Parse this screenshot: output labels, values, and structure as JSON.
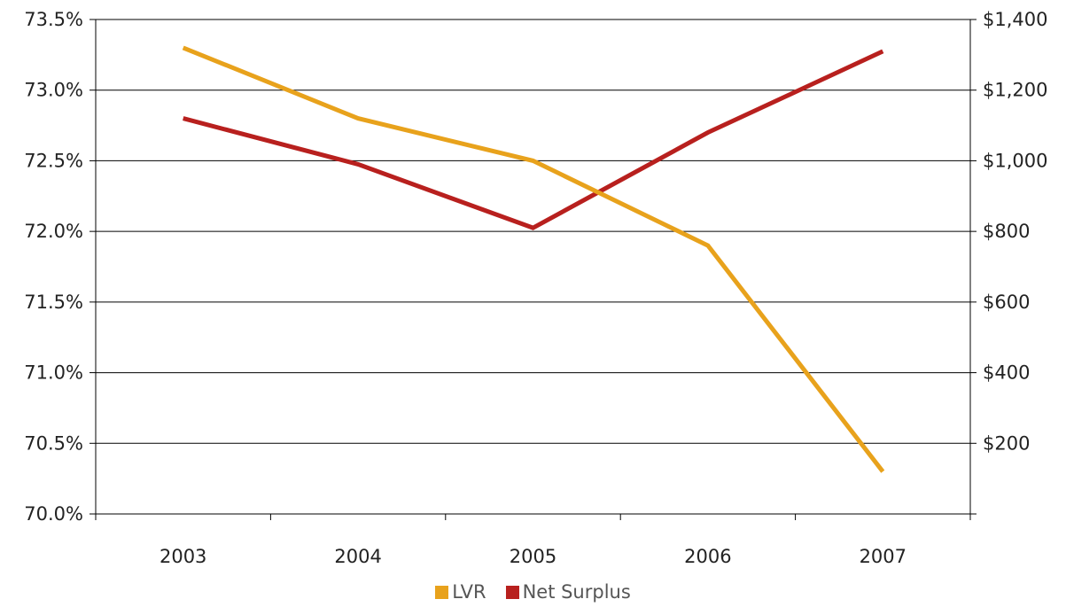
{
  "chart_data": {
    "type": "line",
    "categories": [
      "2003",
      "2004",
      "2005",
      "2006",
      "2007"
    ],
    "series": [
      {
        "name": "LVR",
        "axis": "left",
        "color": "#E8A21C",
        "values": [
          73.3,
          72.8,
          72.5,
          71.9,
          70.3
        ]
      },
      {
        "name": "Net Surplus",
        "axis": "right",
        "color": "#B8201E",
        "values": [
          1120,
          990,
          810,
          1080,
          1310
        ]
      }
    ],
    "y_left": {
      "range": [
        70.0,
        73.5
      ],
      "ticks": [
        "70.0%",
        "70.5%",
        "71.0%",
        "71.5%",
        "72.0%",
        "72.5%",
        "73.0%",
        "73.5%"
      ]
    },
    "y_right": {
      "range": [
        0,
        1400
      ],
      "ticks": [
        "$200",
        "$400",
        "$600",
        "$800",
        "$1,000",
        "$1,200",
        "$1,400"
      ]
    },
    "grid": true,
    "legend": "bottom-center",
    "title": "",
    "xlabel": "",
    "ylabel": ""
  }
}
